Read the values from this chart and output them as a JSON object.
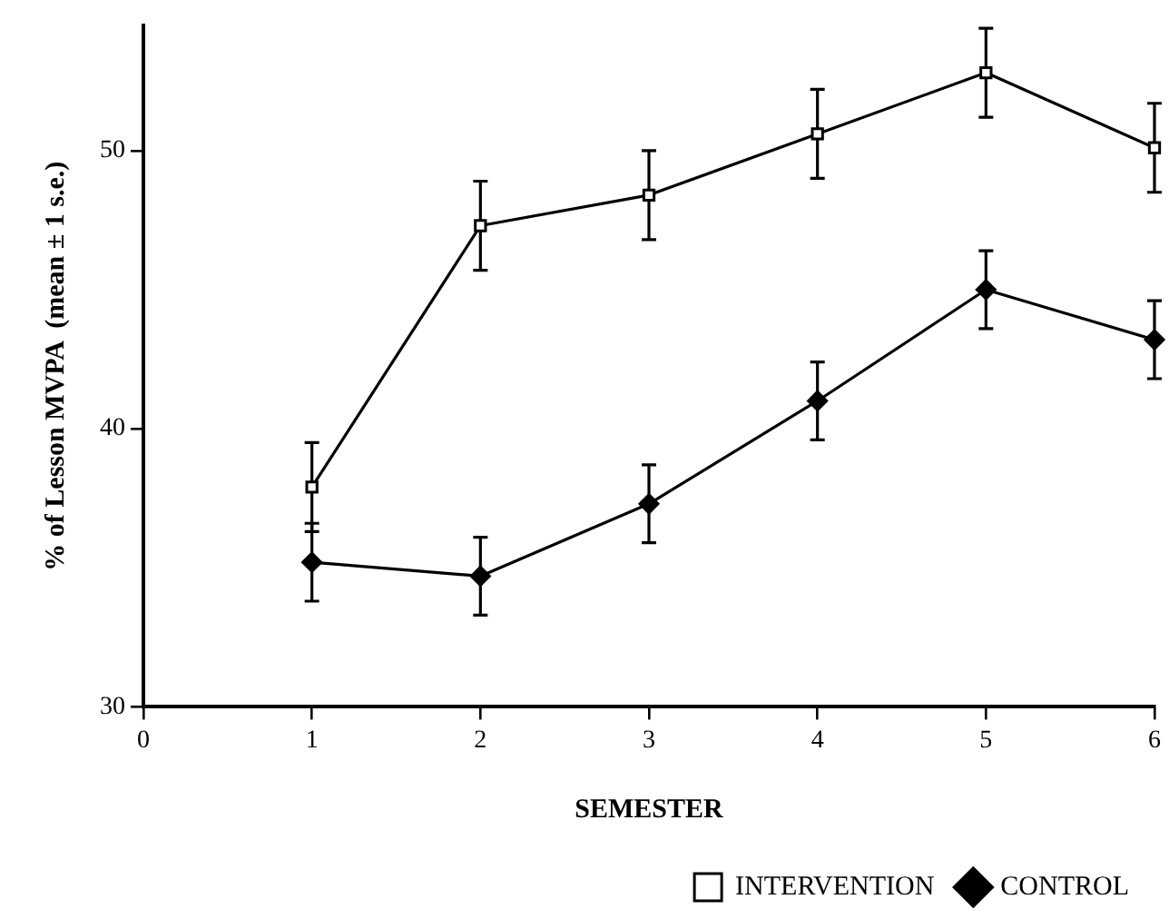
{
  "chart_data": {
    "type": "line",
    "xlabel": "SEMESTER",
    "ylabel": "% of Lesson MVPA  (mean ± 1 s.e.)",
    "x": [
      1,
      2,
      3,
      4,
      5,
      6
    ],
    "series": [
      {
        "name": "INTERVENTION",
        "color": "#000000",
        "marker": "square",
        "values": [
          37.9,
          47.3,
          48.4,
          50.6,
          52.8,
          50.1
        ],
        "errors": [
          1.6,
          1.6,
          1.6,
          1.6,
          1.6,
          1.6
        ]
      },
      {
        "name": "CONTROL",
        "color": "#000000",
        "marker": "diamond",
        "values": [
          35.2,
          34.7,
          37.3,
          41.0,
          45.0,
          43.2
        ],
        "errors": [
          1.4,
          1.4,
          1.4,
          1.4,
          1.4,
          1.4
        ]
      }
    ],
    "xlim": [
      0,
      6
    ],
    "xticks": [
      0,
      1,
      2,
      3,
      4,
      5,
      6
    ],
    "ylim": [
      30,
      54.5
    ],
    "yticks": [
      30,
      40,
      50
    ],
    "grid": false,
    "legend": "bottom right",
    "line_style": "solid"
  }
}
